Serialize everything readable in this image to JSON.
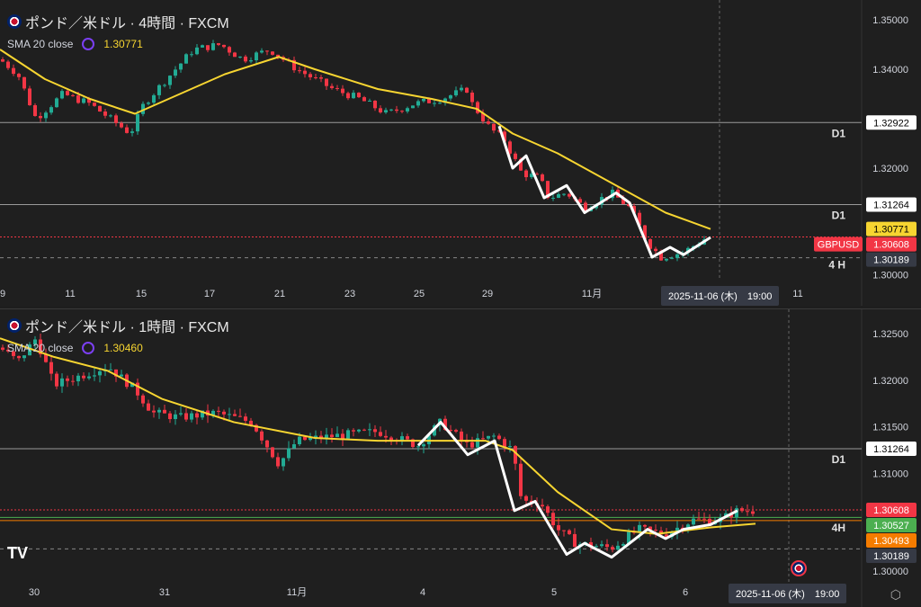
{
  "colors": {
    "up": "#22ab94",
    "down": "#f23645",
    "sma": "#f7d531",
    "zigzag": "#ffffff",
    "current": "#f23645"
  },
  "panels": [
    {
      "title": "ポンド／米ドル · 4時間 · FXCM",
      "sma_label": "SMA 20 close",
      "sma_value": "1.30771",
      "price_range": [
        1.2985,
        1.3525
      ],
      "axis_labels": [
        {
          "p": 1.35,
          "t": "1.35000"
        },
        {
          "p": 1.34,
          "t": "1.34000"
        },
        {
          "p": 1.32,
          "t": "1.32000"
        },
        {
          "p": 1.3,
          "t": "1.30000"
        }
      ],
      "price_boxes": [
        {
          "p": 1.32922,
          "t": "1.32922",
          "bg": "#ffffff",
          "fg": "#000"
        },
        {
          "p": 1.31264,
          "t": "1.31264",
          "bg": "#ffffff",
          "fg": "#000"
        },
        {
          "p": 1.30771,
          "t": "1.30771",
          "bg": "#f7d531",
          "fg": "#000"
        },
        {
          "p": 1.30608,
          "t": "1.30608",
          "bg": "#f23645",
          "fg": "#fff"
        },
        {
          "p": 1.30189,
          "t": "1.30189",
          "bg": "#363a45",
          "fg": "#fff"
        }
      ],
      "symbol_tag": "GBPUSD",
      "hlines": [
        {
          "p": 1.32922,
          "tag": "D1",
          "style": "solid"
        },
        {
          "p": 1.31264,
          "tag": "D1",
          "style": "solid"
        },
        {
          "p": 1.30608,
          "tag": "",
          "style": "dotred"
        },
        {
          "p": 1.30189,
          "tag": "4 H",
          "style": "dash"
        }
      ],
      "dates": [
        {
          "x": 3,
          "t": "9"
        },
        {
          "x": 78,
          "t": "11"
        },
        {
          "x": 157,
          "t": "15"
        },
        {
          "x": 233,
          "t": "17"
        },
        {
          "x": 311,
          "t": "21"
        },
        {
          "x": 389,
          "t": "23"
        },
        {
          "x": 466,
          "t": "25"
        },
        {
          "x": 542,
          "t": "29"
        },
        {
          "x": 658,
          "t": "11月"
        },
        {
          "x": 887,
          "t": "11"
        }
      ],
      "crosshair_label": "2025-11-06 (木)　19:00",
      "path": [
        [
          0,
          1.342
        ],
        [
          20,
          1.339
        ],
        [
          40,
          1.33
        ],
        [
          70,
          1.335
        ],
        [
          100,
          1.333
        ],
        [
          145,
          1.327
        ],
        [
          160,
          1.333
        ],
        [
          190,
          1.339
        ],
        [
          215,
          1.344
        ],
        [
          245,
          1.345
        ],
        [
          270,
          1.342
        ],
        [
          300,
          1.344
        ],
        [
          330,
          1.34
        ],
        [
          370,
          1.336
        ],
        [
          400,
          1.334
        ],
        [
          430,
          1.331
        ],
        [
          460,
          1.333
        ],
        [
          490,
          1.334
        ],
        [
          520,
          1.336
        ],
        [
          525,
          1.333
        ],
        [
          545,
          1.328
        ],
        [
          560,
          1.326
        ],
        [
          580,
          1.319
        ],
        [
          600,
          1.318
        ],
        [
          610,
          1.314
        ],
        [
          630,
          1.315
        ],
        [
          650,
          1.312
        ],
        [
          680,
          1.315
        ],
        [
          700,
          1.312
        ],
        [
          720,
          1.305
        ],
        [
          735,
          1.302
        ],
        [
          760,
          1.303
        ],
        [
          786,
          1.306
        ]
      ],
      "sma": [
        [
          0,
          1.344
        ],
        [
          50,
          1.338
        ],
        [
          100,
          1.334
        ],
        [
          150,
          1.331
        ],
        [
          200,
          1.335
        ],
        [
          250,
          1.339
        ],
        [
          310,
          1.3425
        ],
        [
          350,
          1.34
        ],
        [
          420,
          1.336
        ],
        [
          480,
          1.334
        ],
        [
          530,
          1.332
        ],
        [
          570,
          1.327
        ],
        [
          620,
          1.323
        ],
        [
          680,
          1.317
        ],
        [
          740,
          1.311
        ],
        [
          790,
          1.3077
        ]
      ],
      "zigzag": [
        [
          555,
          1.3285
        ],
        [
          570,
          1.32
        ],
        [
          585,
          1.3225
        ],
        [
          605,
          1.314
        ],
        [
          630,
          1.3165
        ],
        [
          650,
          1.311
        ],
        [
          685,
          1.315
        ],
        [
          700,
          1.313
        ],
        [
          725,
          1.302
        ],
        [
          745,
          1.304
        ],
        [
          760,
          1.3025
        ],
        [
          790,
          1.306
        ]
      ]
    },
    {
      "title": "ポンド／米ドル · 1時間 · FXCM",
      "sma_label": "SMA 20 close",
      "sma_value": "1.30460",
      "price_range": [
        1.2985,
        1.3285
      ],
      "axis_labels": [
        {
          "p": 1.325,
          "t": "1.32500"
        },
        {
          "p": 1.32,
          "t": "1.32000"
        },
        {
          "p": 1.315,
          "t": "1.31500"
        },
        {
          "p": 1.31,
          "t": "1.31000"
        },
        {
          "p": 1.3,
          "t": "1.30000"
        }
      ],
      "price_boxes": [
        {
          "p": 1.31264,
          "t": "1.31264",
          "bg": "#ffffff",
          "fg": "#000"
        },
        {
          "p": 1.30608,
          "t": "1.30608",
          "bg": "#f23645",
          "fg": "#fff"
        },
        {
          "p": 1.30527,
          "t": "1.30527",
          "bg": "#4caf50",
          "fg": "#fff"
        },
        {
          "p": 1.30493,
          "t": "1.30493",
          "bg": "#f57c00",
          "fg": "#fff"
        },
        {
          "p": 1.30189,
          "t": "1.30189",
          "bg": "#363a45",
          "fg": "#fff"
        }
      ],
      "hlines": [
        {
          "p": 1.31264,
          "tag": "D1",
          "style": "solid"
        },
        {
          "p": 1.30608,
          "tag": "",
          "style": "dotred"
        },
        {
          "p": 1.30527,
          "tag": "",
          "style": "green"
        },
        {
          "p": 1.30493,
          "tag": "4H",
          "style": "orange"
        },
        {
          "p": 1.30189,
          "tag": "",
          "style": "dash"
        }
      ],
      "dates": [
        {
          "x": 38,
          "t": "30"
        },
        {
          "x": 183,
          "t": "31"
        },
        {
          "x": 330,
          "t": "11月"
        },
        {
          "x": 470,
          "t": "4"
        },
        {
          "x": 616,
          "t": "5"
        },
        {
          "x": 762,
          "t": "6"
        }
      ],
      "crosshair_label": "2025-11-06 (木)　19:00",
      "path": [
        [
          0,
          1.3235
        ],
        [
          20,
          1.322
        ],
        [
          40,
          1.3245
        ],
        [
          60,
          1.3195
        ],
        [
          90,
          1.3205
        ],
        [
          120,
          1.3215
        ],
        [
          150,
          1.319
        ],
        [
          170,
          1.3165
        ],
        [
          200,
          1.316
        ],
        [
          240,
          1.3165
        ],
        [
          280,
          1.3155
        ],
        [
          310,
          1.311
        ],
        [
          330,
          1.3135
        ],
        [
          370,
          1.314
        ],
        [
          420,
          1.3145
        ],
        [
          465,
          1.313
        ],
        [
          490,
          1.3155
        ],
        [
          520,
          1.313
        ],
        [
          550,
          1.314
        ],
        [
          570,
          1.3125
        ],
        [
          580,
          1.307
        ],
        [
          600,
          1.307
        ],
        [
          620,
          1.304
        ],
        [
          640,
          1.3025
        ],
        [
          680,
          1.302
        ],
        [
          710,
          1.304
        ],
        [
          740,
          1.3035
        ],
        [
          770,
          1.305
        ],
        [
          800,
          1.305
        ],
        [
          820,
          1.306
        ],
        [
          840,
          1.306
        ]
      ],
      "sma": [
        [
          0,
          1.3245
        ],
        [
          60,
          1.3225
        ],
        [
          120,
          1.321
        ],
        [
          180,
          1.318
        ],
        [
          260,
          1.3155
        ],
        [
          350,
          1.3138
        ],
        [
          420,
          1.3135
        ],
        [
          540,
          1.3135
        ],
        [
          570,
          1.3125
        ],
        [
          620,
          1.308
        ],
        [
          680,
          1.304
        ],
        [
          730,
          1.3035
        ],
        [
          790,
          1.3042
        ],
        [
          840,
          1.3046
        ]
      ],
      "zigzag": [
        [
          465,
          1.313
        ],
        [
          490,
          1.3155
        ],
        [
          520,
          1.312
        ],
        [
          550,
          1.3135
        ],
        [
          572,
          1.306
        ],
        [
          595,
          1.307
        ],
        [
          630,
          1.3013
        ],
        [
          650,
          1.3025
        ],
        [
          680,
          1.301
        ],
        [
          720,
          1.304
        ],
        [
          740,
          1.303
        ],
        [
          760,
          1.304
        ],
        [
          790,
          1.3045
        ],
        [
          820,
          1.306
        ]
      ]
    }
  ],
  "watermark": "TV",
  "settings_icon": "gear-icon"
}
